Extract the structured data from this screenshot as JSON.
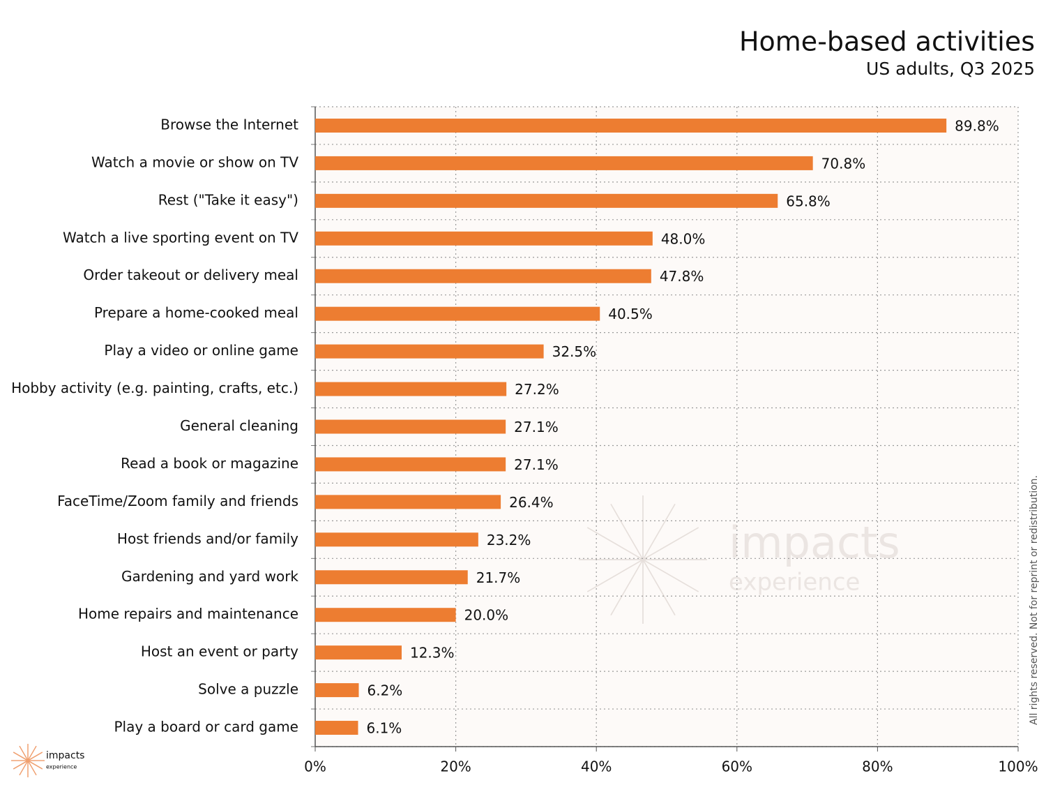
{
  "chart_data": {
    "type": "bar",
    "orientation": "horizontal",
    "title": "Home-based activities",
    "subtitle": "US adults, Q3 2025",
    "categories": [
      "Browse the Internet",
      "Watch a movie or show on TV",
      "Rest (\"Take it easy\")",
      "Watch a live sporting event on TV",
      "Order takeout or delivery meal",
      "Prepare a home-cooked meal",
      "Play a video or online game",
      "Hobby activity (e.g. painting, crafts, etc.)",
      "General cleaning",
      "Read a book or magazine",
      "FaceTime/Zoom family and friends",
      "Host friends and/or family",
      "Gardening and yard work",
      "Home repairs and maintenance",
      "Host an event or party",
      "Solve a puzzle",
      "Play a board or card game"
    ],
    "values": [
      89.8,
      70.8,
      65.8,
      48.0,
      47.8,
      40.5,
      32.5,
      27.2,
      27.1,
      27.1,
      26.4,
      23.2,
      21.7,
      20.0,
      12.3,
      6.2,
      6.1
    ],
    "value_labels": [
      "89.8%",
      "70.8%",
      "65.8%",
      "48.0%",
      "47.8%",
      "40.5%",
      "32.5%",
      "27.2%",
      "27.1%",
      "27.1%",
      "26.4%",
      "23.2%",
      "21.7%",
      "20.0%",
      "12.3%",
      "6.2%",
      "6.1%"
    ],
    "color": "#ed7d31",
    "xlim": [
      0,
      100
    ],
    "xticks": [
      {
        "value": 0,
        "label": "0%"
      },
      {
        "value": 20,
        "label": "20%"
      },
      {
        "value": 40,
        "label": "40%"
      },
      {
        "value": 60,
        "label": "60%"
      },
      {
        "value": 80,
        "label": "80%"
      },
      {
        "value": 100,
        "label": "100%"
      }
    ],
    "grid": true,
    "watermark": [
      "impacts",
      "experience"
    ],
    "logo": [
      "impacts",
      "experience"
    ],
    "note": "All rights reserved. Not for reprint or redistribution."
  }
}
